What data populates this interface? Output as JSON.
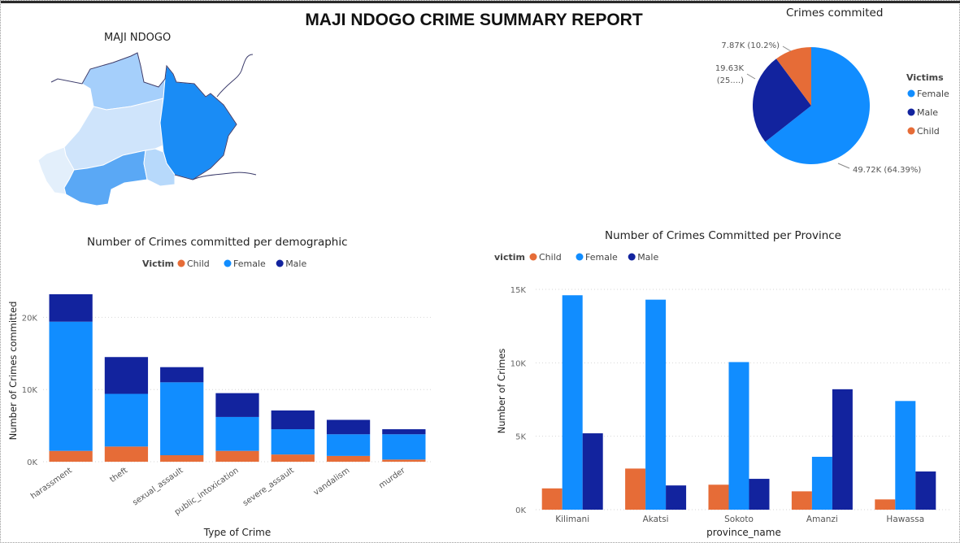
{
  "report_title": "MAJI NDOGO CRIME SUMMARY REPORT",
  "colors": {
    "child": "#E66C37",
    "female": "#118DFF",
    "male": "#12239E"
  },
  "map": {
    "title": "MAJI NDOGO",
    "region_fills": [
      "#ffffff",
      "#a5cffb",
      "#cfe4fb",
      "#e3effb",
      "#1a8cf5",
      "#5aa8f5",
      "#b7d9fb"
    ]
  },
  "chart_data": [
    {
      "id": "pie",
      "type": "pie",
      "title": "Crimes commited",
      "legend_title": "Victims",
      "legend_position": "right",
      "slices": [
        {
          "name": "Female",
          "value": 49.72,
          "label": "49.72K (64.39%)"
        },
        {
          "name": "Male",
          "value": 19.63,
          "label_line1": "19.63K",
          "label_line2": "(25....)"
        },
        {
          "name": "Child",
          "value": 7.87,
          "label": "7.87K (10.2%)"
        }
      ]
    },
    {
      "id": "stacked",
      "type": "bar",
      "stacked": true,
      "title": "Number of Crimes committed per demographic",
      "legend_title": "Victim",
      "legend_position": "top",
      "legend": [
        "Child",
        "Female",
        "Male"
      ],
      "xlabel": "Type of Crime",
      "ylabel": "Number of Crimes committed",
      "ylim": [
        0,
        25000
      ],
      "yticks": [
        0,
        10000,
        20000
      ],
      "ytick_labels": [
        "0K",
        "10K",
        "20K"
      ],
      "grid": true,
      "categories": [
        "harassment",
        "theft",
        "sexual_assault",
        "public_intoxication",
        "severe_assault",
        "vandalism",
        "murder"
      ],
      "series": [
        {
          "name": "Child",
          "values": [
            1500,
            2100,
            900,
            1500,
            1000,
            800,
            300
          ]
        },
        {
          "name": "Female",
          "values": [
            17900,
            7300,
            10100,
            4700,
            3500,
            3000,
            3500
          ]
        },
        {
          "name": "Male",
          "values": [
            3800,
            5100,
            2100,
            3300,
            2600,
            2000,
            700
          ]
        }
      ]
    },
    {
      "id": "grouped",
      "type": "bar",
      "stacked": false,
      "title": "Number of Crimes Committed per Province",
      "legend_title": "victim",
      "legend_position": "top",
      "legend": [
        "Child",
        "Female",
        "Male"
      ],
      "xlabel": "province_name",
      "ylabel": "Number of Crimes",
      "ylim": [
        0,
        15000
      ],
      "yticks": [
        0,
        5000,
        10000,
        15000
      ],
      "ytick_labels": [
        "0K",
        "5K",
        "10K",
        "15K"
      ],
      "grid": true,
      "categories": [
        "Kilimani",
        "Akatsi",
        "Sokoto",
        "Amanzi",
        "Hawassa"
      ],
      "series": [
        {
          "name": "Child",
          "values": [
            1450,
            2800,
            1700,
            1250,
            700
          ]
        },
        {
          "name": "Female",
          "values": [
            14600,
            14300,
            10050,
            3600,
            7400
          ]
        },
        {
          "name": "Male",
          "values": [
            5200,
            1650,
            2100,
            8200,
            2600
          ]
        }
      ]
    }
  ]
}
